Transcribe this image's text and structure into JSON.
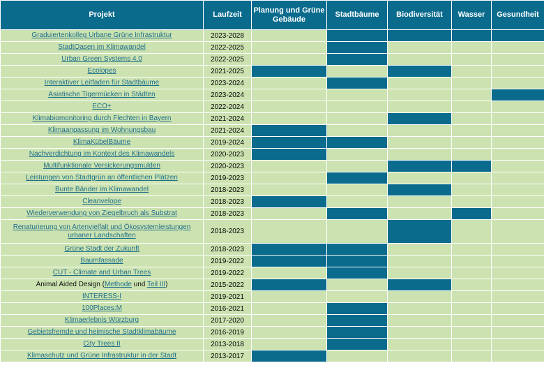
{
  "headers": {
    "project": "Projekt",
    "runtime": "Laufzeit",
    "planning": "Planung und Grüne Gebäude",
    "trees": "Stadtbäume",
    "biodiversity": "Biodiversität",
    "water": "Wasser",
    "health": "Gesundheit"
  },
  "rows": [
    {
      "title": "Graduiertenkolleg Urbane Grüne Infrastruktur",
      "years": "2023-2028",
      "cats": [
        false,
        true,
        true,
        true,
        true
      ]
    },
    {
      "title": "StadtOasen im Klimawandel",
      "years": "2022-2025",
      "cats": [
        false,
        true,
        false,
        false,
        false
      ]
    },
    {
      "title": "Urban Green Systems 4.0",
      "years": "2022-2025",
      "cats": [
        false,
        true,
        false,
        false,
        false
      ]
    },
    {
      "title": "Ecolopes",
      "years": "2021-2025",
      "cats": [
        true,
        false,
        true,
        false,
        false
      ]
    },
    {
      "title": "Interaktiver Leitfaden für Stadtbäume",
      "years": "2023-2024",
      "cats": [
        false,
        true,
        false,
        false,
        false
      ]
    },
    {
      "title": "Asiatische Tigermücken in Städten",
      "years": "2023-2024",
      "cats": [
        false,
        false,
        false,
        false,
        true
      ]
    },
    {
      "title": "ECO+",
      "years": "2022-2024",
      "cats": [
        false,
        false,
        false,
        false,
        false
      ]
    },
    {
      "title": "Klimabiomonitoring durch Flechten in Bayern",
      "years": "2021-2024",
      "cats": [
        false,
        false,
        true,
        false,
        false
      ]
    },
    {
      "title": "Klimaanpassung im Wohnungsbau",
      "years": "2021-2024",
      "cats": [
        true,
        false,
        false,
        false,
        false
      ]
    },
    {
      "title": "KlimaKübelBäume",
      "years": "2019-2024",
      "cats": [
        true,
        true,
        false,
        false,
        false
      ]
    },
    {
      "title": "Nachverdichtung im Kontext des Klimawandels",
      "years": "2020-2023",
      "cats": [
        true,
        false,
        false,
        false,
        false
      ]
    },
    {
      "title": "Multifunktionale Versickerungsmulden",
      "years": "2020-2023",
      "cats": [
        false,
        false,
        true,
        true,
        false
      ]
    },
    {
      "title": "Leistungen von Stadtgrün an öffentlichen Plätzen",
      "years": "2019-2023",
      "cats": [
        false,
        true,
        false,
        false,
        false
      ]
    },
    {
      "title": "Bunte Bänder im Klimawandel",
      "years": "2018-2023",
      "cats": [
        false,
        false,
        true,
        false,
        false
      ]
    },
    {
      "title": "Cleanvelope",
      "years": "2018-2023",
      "cats": [
        true,
        false,
        false,
        false,
        false
      ]
    },
    {
      "title": "Wiederverwendung von Ziegelbruch als Substrat",
      "years": "2018-2023",
      "cats": [
        false,
        true,
        false,
        true,
        false
      ]
    },
    {
      "title": "Renaturierung von Artenvielfalt und Ökosystemleistungen urbaner Landschaften",
      "years": "2018-2023",
      "cats": [
        false,
        false,
        true,
        false,
        false
      ],
      "tall": true
    },
    {
      "title": "Grüne Stadt der Zukunft",
      "years": "2018-2023",
      "cats": [
        true,
        true,
        false,
        false,
        false
      ]
    },
    {
      "title": "Baumfassade",
      "years": "2019-2022",
      "cats": [
        true,
        true,
        false,
        false,
        false
      ]
    },
    {
      "title": "CUT - Climate and Urban Trees",
      "years": "2019-2022",
      "cats": [
        false,
        true,
        false,
        false,
        false
      ]
    },
    {
      "title_prefix": "Animal Aided Design (",
      "link1": "Methode",
      "title_mid": " und ",
      "link2": "Teil III",
      "title_suffix": ")",
      "years": "2015-2022",
      "cats": [
        true,
        false,
        true,
        false,
        false
      ],
      "mixed": true
    },
    {
      "title": "INTERESS-I",
      "years": "2019-2021",
      "cats": [
        false,
        false,
        false,
        false,
        false
      ]
    },
    {
      "title": "100Places:M",
      "years": "2016-2021",
      "cats": [
        false,
        true,
        false,
        false,
        false
      ]
    },
    {
      "title": "Klimaerlebnis Würzburg",
      "years": "2017-2020",
      "cats": [
        false,
        true,
        false,
        false,
        false
      ]
    },
    {
      "title": "Gebietsfremde und heimische Stadtklimabäume",
      "years": "2016-2019",
      "cats": [
        false,
        true,
        false,
        false,
        false
      ]
    },
    {
      "title": "City Trees II",
      "years": "2013-2018",
      "cats": [
        false,
        true,
        false,
        false,
        false
      ]
    },
    {
      "title": "Klimaschutz und Grüne Infrastruktur in der Stadt",
      "years": "2013-2017",
      "cats": [
        true,
        false,
        false,
        false,
        false
      ]
    }
  ],
  "colors": {
    "accent": "#0a6b8d",
    "cell": "#cce3b1",
    "link": "#1f6f8a"
  }
}
